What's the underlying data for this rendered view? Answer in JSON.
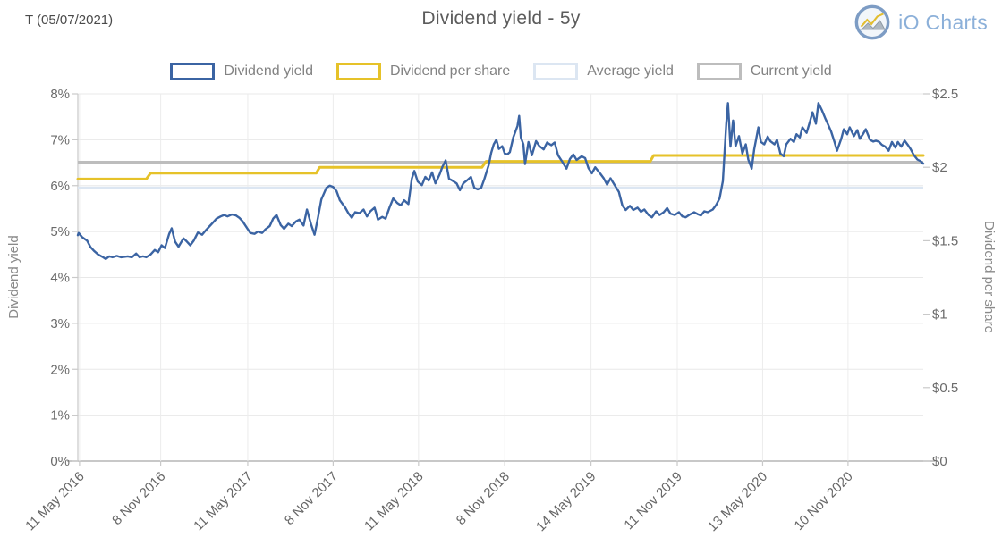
{
  "header": {
    "ticker": "T (05/07/2021)",
    "title": "Dividend yield - 5y",
    "brand": "iO Charts"
  },
  "chart_data": {
    "type": "line",
    "title": "Dividend yield - 5y",
    "x_axis": {
      "start": "11 May 2016",
      "end": "7 May 2021",
      "ticks": [
        {
          "f": 0.002,
          "label": "11 May 2016"
        },
        {
          "f": 0.098,
          "label": "8 Nov 2016"
        },
        {
          "f": 0.201,
          "label": "11 May 2017"
        },
        {
          "f": 0.302,
          "label": "8 Nov 2017"
        },
        {
          "f": 0.403,
          "label": "11 May 2018"
        },
        {
          "f": 0.505,
          "label": "8 Nov 2018"
        },
        {
          "f": 0.607,
          "label": "14 May 2019"
        },
        {
          "f": 0.709,
          "label": "11 Nov 2019"
        },
        {
          "f": 0.81,
          "label": "13 May 2020"
        },
        {
          "f": 0.911,
          "label": "10 Nov 2020"
        }
      ]
    },
    "y_left": {
      "title": "Dividend yield",
      "min": 0,
      "max": 8,
      "labels": [
        "0%",
        "1%",
        "2%",
        "3%",
        "4%",
        "5%",
        "6%",
        "7%",
        "8%"
      ]
    },
    "y_right": {
      "title": "Dividend per share",
      "min": 0,
      "max": 2.5,
      "labels": [
        "$0",
        "$0.5",
        "$1",
        "$1.5",
        "$2",
        "$2.5"
      ]
    },
    "grid": {
      "color": "#e8e8e8",
      "axis_color": "#b5b5b5",
      "tick_color": "#c9c9c9",
      "label_color": "#6b6b6b",
      "horizontal": true,
      "vertical": true
    },
    "legend_position": "top-center",
    "series": [
      {
        "name": "Dividend yield",
        "kind": "line",
        "axis": "left",
        "color": "#3b64a3",
        "width": 2.4,
        "z": 4,
        "points": [
          [
            0,
            4.92
          ],
          [
            0.001,
            4.97
          ],
          [
            0.005,
            4.88
          ],
          [
            0.011,
            4.8
          ],
          [
            0.015,
            4.66
          ],
          [
            0.019,
            4.58
          ],
          [
            0.024,
            4.5
          ],
          [
            0.029,
            4.45
          ],
          [
            0.033,
            4.4
          ],
          [
            0.037,
            4.46
          ],
          [
            0.041,
            4.44
          ],
          [
            0.046,
            4.47
          ],
          [
            0.051,
            4.44
          ],
          [
            0.055,
            4.45
          ],
          [
            0.059,
            4.46
          ],
          [
            0.064,
            4.44
          ],
          [
            0.069,
            4.52
          ],
          [
            0.073,
            4.44
          ],
          [
            0.077,
            4.46
          ],
          [
            0.081,
            4.44
          ],
          [
            0.086,
            4.5
          ],
          [
            0.091,
            4.6
          ],
          [
            0.095,
            4.55
          ],
          [
            0.099,
            4.7
          ],
          [
            0.103,
            4.64
          ],
          [
            0.108,
            4.95
          ],
          [
            0.111,
            5.07
          ],
          [
            0.115,
            4.78
          ],
          [
            0.119,
            4.67
          ],
          [
            0.125,
            4.85
          ],
          [
            0.129,
            4.78
          ],
          [
            0.133,
            4.7
          ],
          [
            0.137,
            4.8
          ],
          [
            0.142,
            4.98
          ],
          [
            0.147,
            4.93
          ],
          [
            0.151,
            5.02
          ],
          [
            0.155,
            5.1
          ],
          [
            0.159,
            5.18
          ],
          [
            0.164,
            5.28
          ],
          [
            0.169,
            5.33
          ],
          [
            0.173,
            5.36
          ],
          [
            0.177,
            5.33
          ],
          [
            0.182,
            5.37
          ],
          [
            0.187,
            5.35
          ],
          [
            0.191,
            5.3
          ],
          [
            0.195,
            5.22
          ],
          [
            0.2,
            5.08
          ],
          [
            0.204,
            4.97
          ],
          [
            0.209,
            4.95
          ],
          [
            0.213,
            5.0
          ],
          [
            0.218,
            4.97
          ],
          [
            0.222,
            5.05
          ],
          [
            0.227,
            5.12
          ],
          [
            0.231,
            5.28
          ],
          [
            0.235,
            5.36
          ],
          [
            0.24,
            5.14
          ],
          [
            0.244,
            5.06
          ],
          [
            0.249,
            5.17
          ],
          [
            0.253,
            5.12
          ],
          [
            0.258,
            5.22
          ],
          [
            0.262,
            5.26
          ],
          [
            0.267,
            5.13
          ],
          [
            0.271,
            5.48
          ],
          [
            0.276,
            5.15
          ],
          [
            0.28,
            4.93
          ],
          [
            0.284,
            5.3
          ],
          [
            0.288,
            5.7
          ],
          [
            0.294,
            5.95
          ],
          [
            0.298,
            6.0
          ],
          [
            0.302,
            5.97
          ],
          [
            0.306,
            5.88
          ],
          [
            0.31,
            5.68
          ],
          [
            0.316,
            5.53
          ],
          [
            0.32,
            5.4
          ],
          [
            0.324,
            5.3
          ],
          [
            0.328,
            5.42
          ],
          [
            0.333,
            5.4
          ],
          [
            0.338,
            5.48
          ],
          [
            0.342,
            5.33
          ],
          [
            0.346,
            5.44
          ],
          [
            0.351,
            5.52
          ],
          [
            0.355,
            5.26
          ],
          [
            0.36,
            5.32
          ],
          [
            0.364,
            5.28
          ],
          [
            0.369,
            5.54
          ],
          [
            0.373,
            5.72
          ],
          [
            0.378,
            5.62
          ],
          [
            0.382,
            5.57
          ],
          [
            0.386,
            5.68
          ],
          [
            0.391,
            5.6
          ],
          [
            0.395,
            6.15
          ],
          [
            0.398,
            6.32
          ],
          [
            0.402,
            6.09
          ],
          [
            0.407,
            6.01
          ],
          [
            0.411,
            6.19
          ],
          [
            0.415,
            6.11
          ],
          [
            0.419,
            6.29
          ],
          [
            0.423,
            6.05
          ],
          [
            0.428,
            6.25
          ],
          [
            0.431,
            6.4
          ],
          [
            0.435,
            6.55
          ],
          [
            0.439,
            6.15
          ],
          [
            0.443,
            6.11
          ],
          [
            0.448,
            6.05
          ],
          [
            0.452,
            5.9
          ],
          [
            0.456,
            6.05
          ],
          [
            0.46,
            6.11
          ],
          [
            0.465,
            6.19
          ],
          [
            0.469,
            5.95
          ],
          [
            0.473,
            5.92
          ],
          [
            0.477,
            5.95
          ],
          [
            0.481,
            6.15
          ],
          [
            0.486,
            6.45
          ],
          [
            0.489,
            6.72
          ],
          [
            0.492,
            6.9
          ],
          [
            0.495,
            7.0
          ],
          [
            0.498,
            6.8
          ],
          [
            0.502,
            6.86
          ],
          [
            0.505,
            6.7
          ],
          [
            0.508,
            6.68
          ],
          [
            0.511,
            6.73
          ],
          [
            0.515,
            7.05
          ],
          [
            0.52,
            7.3
          ],
          [
            0.522,
            7.52
          ],
          [
            0.524,
            7.05
          ],
          [
            0.527,
            6.9
          ],
          [
            0.529,
            6.47
          ],
          [
            0.533,
            6.95
          ],
          [
            0.537,
            6.66
          ],
          [
            0.542,
            6.97
          ],
          [
            0.546,
            6.86
          ],
          [
            0.551,
            6.79
          ],
          [
            0.555,
            6.94
          ],
          [
            0.56,
            6.88
          ],
          [
            0.564,
            6.94
          ],
          [
            0.568,
            6.66
          ],
          [
            0.573,
            6.52
          ],
          [
            0.578,
            6.37
          ],
          [
            0.582,
            6.58
          ],
          [
            0.586,
            6.68
          ],
          [
            0.59,
            6.56
          ],
          [
            0.596,
            6.64
          ],
          [
            0.6,
            6.6
          ],
          [
            0.604,
            6.38
          ],
          [
            0.608,
            6.27
          ],
          [
            0.612,
            6.4
          ],
          [
            0.618,
            6.26
          ],
          [
            0.622,
            6.16
          ],
          [
            0.626,
            6.02
          ],
          [
            0.63,
            6.16
          ],
          [
            0.635,
            6.01
          ],
          [
            0.64,
            5.86
          ],
          [
            0.644,
            5.57
          ],
          [
            0.648,
            5.47
          ],
          [
            0.653,
            5.56
          ],
          [
            0.657,
            5.47
          ],
          [
            0.662,
            5.52
          ],
          [
            0.666,
            5.43
          ],
          [
            0.67,
            5.48
          ],
          [
            0.675,
            5.36
          ],
          [
            0.679,
            5.31
          ],
          [
            0.684,
            5.44
          ],
          [
            0.688,
            5.36
          ],
          [
            0.693,
            5.42
          ],
          [
            0.697,
            5.51
          ],
          [
            0.701,
            5.39
          ],
          [
            0.706,
            5.36
          ],
          [
            0.711,
            5.42
          ],
          [
            0.715,
            5.33
          ],
          [
            0.719,
            5.31
          ],
          [
            0.723,
            5.36
          ],
          [
            0.729,
            5.42
          ],
          [
            0.733,
            5.38
          ],
          [
            0.737,
            5.35
          ],
          [
            0.741,
            5.44
          ],
          [
            0.745,
            5.42
          ],
          [
            0.751,
            5.48
          ],
          [
            0.755,
            5.58
          ],
          [
            0.759,
            5.72
          ],
          [
            0.763,
            6.1
          ],
          [
            0.767,
            7.35
          ],
          [
            0.769,
            7.8
          ],
          [
            0.772,
            6.85
          ],
          [
            0.775,
            7.42
          ],
          [
            0.778,
            6.86
          ],
          [
            0.782,
            7.08
          ],
          [
            0.786,
            6.7
          ],
          [
            0.79,
            6.9
          ],
          [
            0.793,
            6.57
          ],
          [
            0.797,
            6.37
          ],
          [
            0.8,
            6.79
          ],
          [
            0.805,
            7.27
          ],
          [
            0.808,
            6.95
          ],
          [
            0.812,
            6.9
          ],
          [
            0.816,
            7.07
          ],
          [
            0.819,
            6.97
          ],
          [
            0.824,
            6.9
          ],
          [
            0.827,
            7.0
          ],
          [
            0.831,
            6.7
          ],
          [
            0.835,
            6.64
          ],
          [
            0.838,
            6.9
          ],
          [
            0.843,
            7.02
          ],
          [
            0.847,
            6.95
          ],
          [
            0.85,
            7.12
          ],
          [
            0.854,
            7.05
          ],
          [
            0.857,
            7.27
          ],
          [
            0.862,
            7.15
          ],
          [
            0.866,
            7.4
          ],
          [
            0.869,
            7.6
          ],
          [
            0.873,
            7.35
          ],
          [
            0.876,
            7.8
          ],
          [
            0.88,
            7.65
          ],
          [
            0.884,
            7.47
          ],
          [
            0.887,
            7.35
          ],
          [
            0.891,
            7.18
          ],
          [
            0.895,
            6.95
          ],
          [
            0.898,
            6.76
          ],
          [
            0.903,
            7.02
          ],
          [
            0.906,
            7.23
          ],
          [
            0.91,
            7.12
          ],
          [
            0.913,
            7.27
          ],
          [
            0.918,
            7.08
          ],
          [
            0.922,
            7.21
          ],
          [
            0.925,
            7.02
          ],
          [
            0.929,
            7.13
          ],
          [
            0.932,
            7.23
          ],
          [
            0.937,
            7.0
          ],
          [
            0.941,
            6.96
          ],
          [
            0.944,
            6.98
          ],
          [
            0.948,
            6.95
          ],
          [
            0.951,
            6.89
          ],
          [
            0.955,
            6.85
          ],
          [
            0.959,
            6.76
          ],
          [
            0.963,
            6.95
          ],
          [
            0.967,
            6.83
          ],
          [
            0.97,
            6.95
          ],
          [
            0.974,
            6.85
          ],
          [
            0.978,
            6.98
          ],
          [
            0.982,
            6.88
          ],
          [
            0.985,
            6.8
          ],
          [
            0.989,
            6.66
          ],
          [
            0.993,
            6.57
          ],
          [
            0.997,
            6.53
          ],
          [
            1,
            6.48
          ]
        ]
      },
      {
        "name": "Dividend per share",
        "kind": "line",
        "axis": "right",
        "color": "#e6c229",
        "width": 3,
        "z": 3,
        "points": [
          [
            0,
            1.92
          ],
          [
            0.081,
            1.92
          ],
          [
            0.086,
            1.96
          ],
          [
            0.282,
            1.96
          ],
          [
            0.286,
            2.0
          ],
          [
            0.478,
            2.0
          ],
          [
            0.483,
            2.04
          ],
          [
            0.677,
            2.04
          ],
          [
            0.681,
            2.08
          ],
          [
            1,
            2.08
          ]
        ]
      },
      {
        "name": "Average yield",
        "kind": "hline",
        "axis": "left",
        "color": "#dce6f2",
        "width": 3,
        "z": 1,
        "value": 5.95
      },
      {
        "name": "Current yield",
        "kind": "hline",
        "axis": "left",
        "color": "#bdbdbd",
        "width": 3,
        "z": 2,
        "value": 6.51
      }
    ]
  }
}
